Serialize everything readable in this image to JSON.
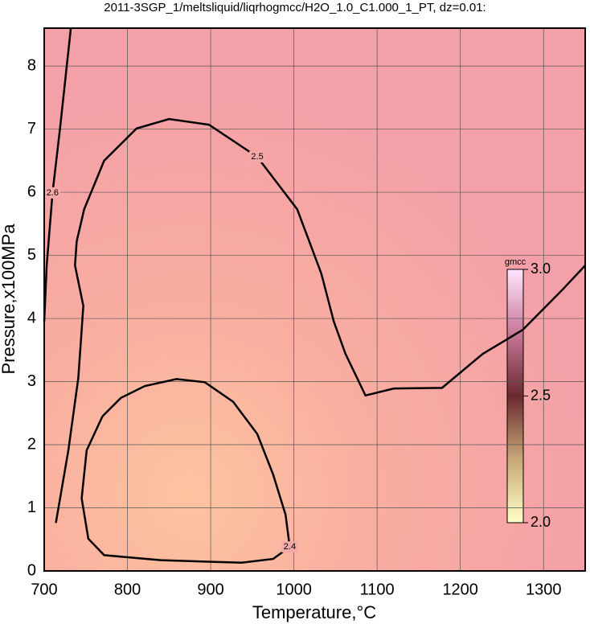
{
  "chart_data": {
    "type": "contour",
    "title": "2011-3SGP_1/meltsliquid/liqrhogmcc/H2O_1.0_C1.000_1_PT, dz=0.01:",
    "x_label": "Temperature,°C",
    "y_label": "Pressure,x100MPa",
    "xlim": [
      700,
      1350
    ],
    "ylim": [
      0,
      8.6
    ],
    "xticks": [
      700,
      800,
      900,
      1000,
      1100,
      1200,
      1300
    ],
    "yticks": [
      0,
      1,
      2,
      3,
      4,
      5,
      6,
      7,
      8
    ],
    "grid": true,
    "colorbar": {
      "label": "gmcc",
      "range": [
        2,
        3
      ],
      "ticks": [
        {
          "value": 2,
          "label": "2.0"
        },
        {
          "value": 2.5,
          "label": "2.5"
        },
        {
          "value": 3,
          "label": "3.0"
        }
      ]
    },
    "contours": [
      {
        "level": 2.5,
        "color": "#000000",
        "x": [
          714,
          729,
          741,
          747,
          737,
          739,
          748,
          772,
          811,
          850,
          898,
          956,
          1004,
          1033,
          1048,
          1062,
          1086,
          1120,
          1178,
          1227,
          1275,
          1323,
          1350
        ],
        "y": [
          0.76,
          1.91,
          3.06,
          4.2,
          4.84,
          5.22,
          5.73,
          6.5,
          7.01,
          7.16,
          7.07,
          6.56,
          5.73,
          4.71,
          3.95,
          3.44,
          2.78,
          2.89,
          2.9,
          3.44,
          3.82,
          4.46,
          4.84
        ]
      },
      {
        "level": 2.4,
        "color": "#000000",
        "x": [
          770,
          792,
          821,
          859,
          893,
          927,
          956,
          975,
          990,
          995,
          975,
          937,
          840,
          772,
          753,
          745,
          751,
          770
        ],
        "y": [
          2.45,
          2.74,
          2.93,
          3.04,
          2.99,
          2.68,
          2.17,
          1.53,
          0.89,
          0.38,
          0.19,
          0.13,
          0.17,
          0.25,
          0.51,
          1.15,
          1.91,
          2.45
        ]
      },
      {
        "level": 2.6,
        "color": "#000000",
        "x": [
          732,
          719,
          710,
          703,
          700
        ],
        "y": [
          8.6,
          7.01,
          5.99,
          4.84,
          3.95
        ]
      }
    ]
  }
}
